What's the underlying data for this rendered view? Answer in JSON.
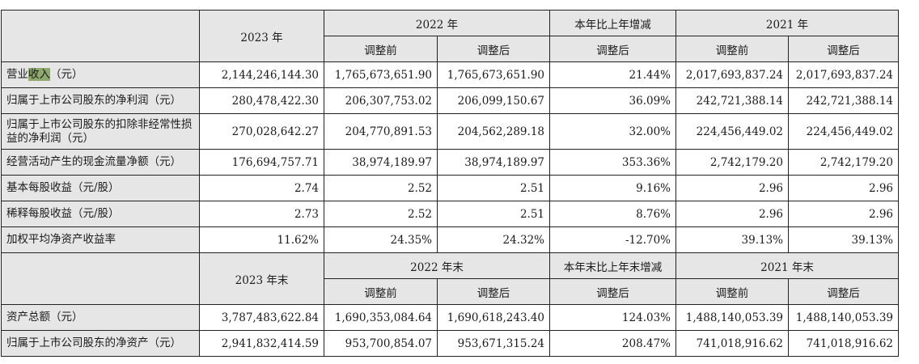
{
  "header1": {
    "y2023": "2023 年",
    "y2022": "2022 年",
    "change": "本年比上年增减",
    "y2021": "2021 年",
    "before": "调整前",
    "after": "调整后"
  },
  "header2": {
    "y2023": "2023 年末",
    "y2022": "2022 年末",
    "change": "本年末比上年末增减",
    "y2021": "2021 年末",
    "before": "调整前",
    "after": "调整后"
  },
  "revenue_label": {
    "pre": "营业",
    "hl": "收入",
    "post": "（元）"
  },
  "rows1": [
    {
      "v": [
        "280,478,422.30",
        "206,307,753.02",
        "206,099,150.67",
        "36.09%",
        "242,721,388.14",
        "242,721,388.14"
      ],
      "label": "归属于上市公司股东的净利润（元）"
    },
    {
      "v": [
        "270,028,642.27",
        "204,770,891.53",
        "204,562,289.18",
        "32.00%",
        "224,456,449.02",
        "224,456,449.02"
      ],
      "label": "归属于上市公司股东的扣除非经常性损益的净利润（元）"
    },
    {
      "v": [
        "176,694,757.71",
        "38,974,189.97",
        "38,974,189.97",
        "353.36%",
        "2,742,179.20",
        "2,742,179.20"
      ],
      "label": "经营活动产生的现金流量净额（元）"
    },
    {
      "v": [
        "2.74",
        "2.52",
        "2.51",
        "9.16%",
        "2.96",
        "2.96"
      ],
      "label": "基本每股收益（元/股）"
    },
    {
      "v": [
        "2.73",
        "2.52",
        "2.51",
        "8.76%",
        "2.96",
        "2.96"
      ],
      "label": "稀释每股收益（元/股）"
    },
    {
      "v": [
        "11.62%",
        "24.35%",
        "24.32%",
        "-12.70%",
        "39.13%",
        "39.13%"
      ],
      "label": "加权平均净资产收益率"
    }
  ],
  "revenue_values": [
    "2,144,246,144.30",
    "1,765,673,651.90",
    "1,765,673,651.90",
    "21.44%",
    "2,017,693,837.24",
    "2,017,693,837.24"
  ],
  "rows2": [
    {
      "label": "资产总额（元）",
      "v": [
        "3,787,483,622.84",
        "1,690,353,084.64",
        "1,690,618,243.40",
        "124.03%",
        "1,488,140,053.39",
        "1,488,140,053.39"
      ]
    },
    {
      "label": "归属于上市公司股东的净资产（元）",
      "v": [
        "2,941,832,414.59",
        "953,700,854.07",
        "953,671,315.24",
        "208.47%",
        "741,018,916.62",
        "741,018,916.62"
      ]
    }
  ]
}
